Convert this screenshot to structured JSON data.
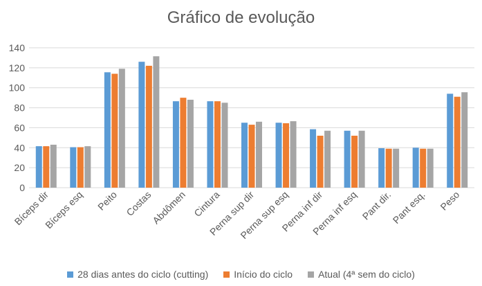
{
  "chart_data": {
    "type": "bar",
    "title": "Gráfico de evolução",
    "categories": [
      "Bíceps dir",
      "Bíceps esq",
      "Peito",
      "Costas",
      "Abdômen",
      "Cintura",
      "Perna sup dir",
      "Perna sup esq",
      "Perna inf dir",
      "Perna inf esq",
      "Pant dir.",
      "Pant esq.",
      "Peso"
    ],
    "series": [
      {
        "name": "28 dias antes do ciclo (cutting)",
        "color": "#5B9BD5",
        "values": [
          41.5,
          40.5,
          115.5,
          126,
          86.5,
          86.5,
          65,
          65,
          58.5,
          57,
          39.5,
          40,
          94
        ]
      },
      {
        "name": "Início do ciclo",
        "color": "#ED7D31",
        "values": [
          41.5,
          40.5,
          114,
          122,
          90,
          86.5,
          63,
          64.5,
          52,
          52,
          39,
          39,
          91
        ]
      },
      {
        "name": "Atual (4ª sem do ciclo)",
        "color": "#A5A5A5",
        "values": [
          43,
          41.5,
          119,
          131.5,
          88,
          85,
          66,
          66.5,
          57,
          57,
          39,
          39,
          95.5
        ]
      }
    ],
    "yticks": [
      0,
      20,
      40,
      60,
      80,
      100,
      120,
      140
    ],
    "ylim": [
      0,
      140
    ],
    "grid": true,
    "legend_position": "bottom"
  }
}
